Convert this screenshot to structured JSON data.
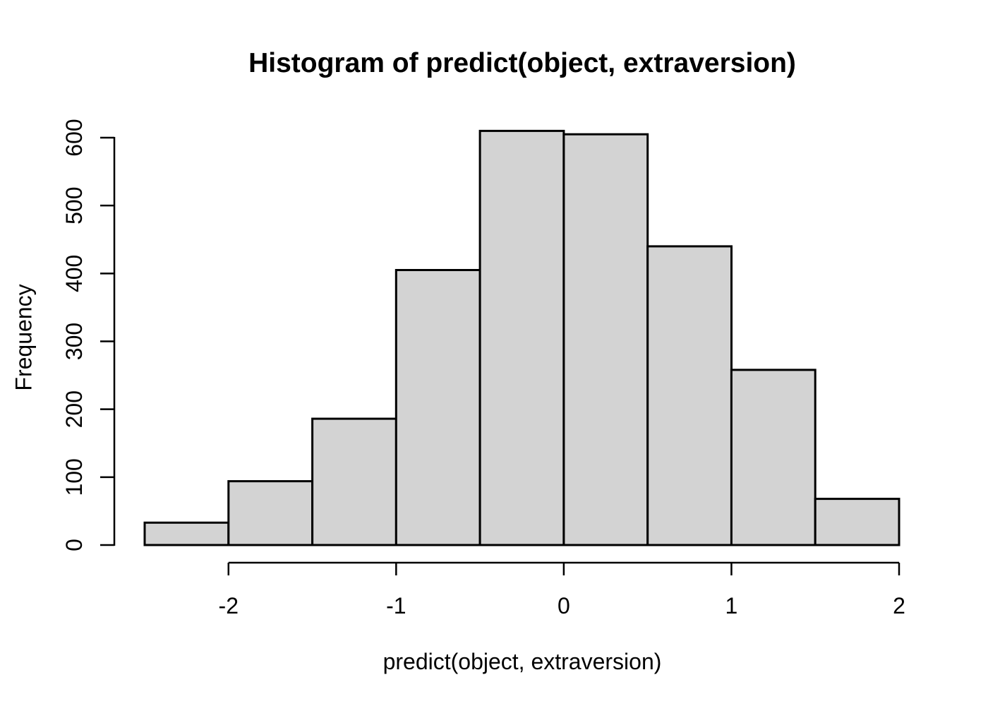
{
  "figure": {
    "title": "Histogram of predict(object, extraversion)",
    "xlabel": "predict(object, extraversion)",
    "ylabel": "Frequency",
    "background": "#ffffff"
  },
  "chart_data": {
    "type": "bar",
    "subtype": "histogram",
    "title": "Histogram of predict(object, extraversion)",
    "xlabel": "predict(object, extraversion)",
    "ylabel": "Frequency",
    "bin_edges": [
      -2.5,
      -2.0,
      -1.5,
      -1.0,
      -0.5,
      0.0,
      0.5,
      1.0,
      1.5,
      2.0
    ],
    "values": [
      33,
      94,
      186,
      405,
      610,
      605,
      440,
      258,
      68
    ],
    "x_ticks": [
      "-2",
      "-1",
      "0",
      "1",
      "2"
    ],
    "x_tick_values": [
      -2,
      -1,
      0,
      1,
      2
    ],
    "y_ticks": [
      "0",
      "100",
      "200",
      "300",
      "400",
      "500",
      "600"
    ],
    "y_tick_values": [
      0,
      100,
      200,
      300,
      400,
      500,
      600
    ],
    "xlim": [
      -2.5,
      2.0
    ],
    "ylim": [
      0,
      600
    ],
    "grid": false,
    "legend": "none",
    "colors": {
      "bar_fill": "#d3d3d3",
      "bar_border": "#000000",
      "axis": "#000000",
      "text": "#000000",
      "background": "#ffffff"
    }
  }
}
